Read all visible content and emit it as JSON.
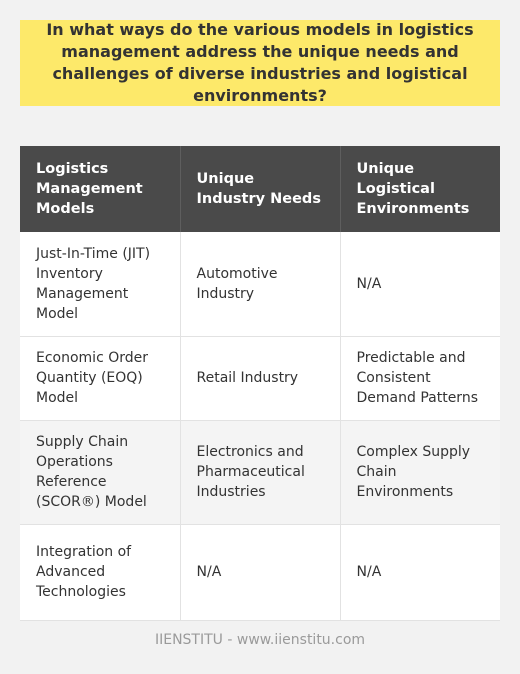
{
  "title": "In what ways do the various models in logistics management address the unique needs and challenges of diverse industries and logistical environments?",
  "table": {
    "headers": [
      "Logistics Management Models",
      "Unique Industry Needs",
      "Unique Logistical Environments"
    ],
    "rows": [
      [
        "Just-In-Time (JIT) Inventory Management Model",
        "Automotive Industry",
        "N/A"
      ],
      [
        "Economic Order Quantity (EOQ) Model",
        "Retail Industry",
        "Predictable and Consistent Demand Patterns"
      ],
      [
        "Supply Chain Operations Reference (SCOR®) Model",
        "Electronics and Pharmaceutical Industries",
        "Complex Supply Chain Environments"
      ],
      [
        "Integration of Advanced Technologies",
        "N/A",
        "N/A"
      ]
    ]
  },
  "footer": "IIENSTITU - www.iienstitu.com",
  "colors": {
    "title_background": "#fde96a",
    "header_background": "#4a4a4a",
    "page_background": "#f2f2f2"
  }
}
